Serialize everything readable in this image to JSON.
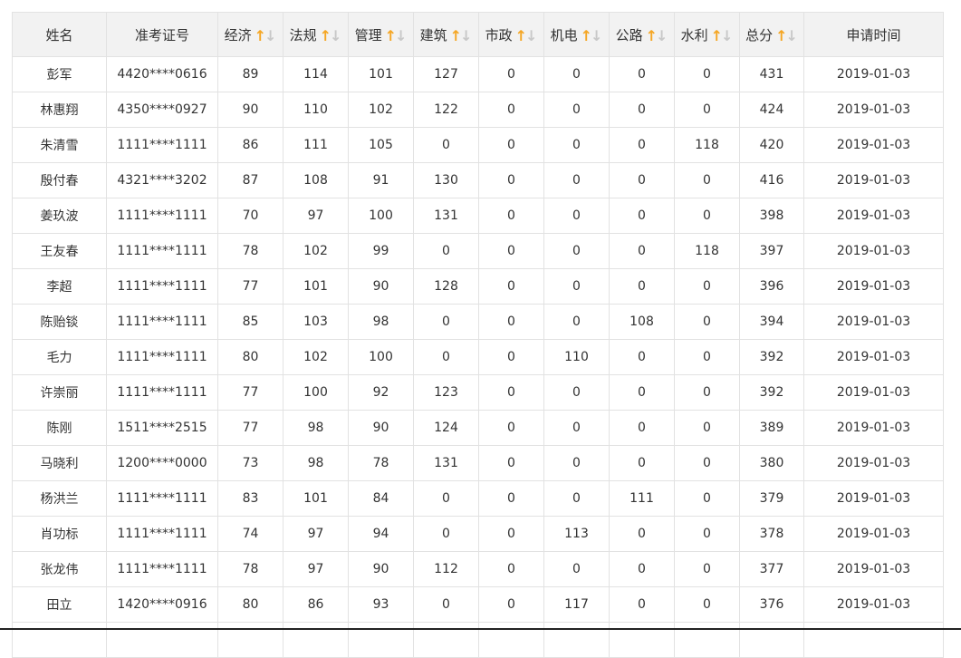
{
  "columns": [
    {
      "label": "姓名",
      "sortable": false
    },
    {
      "label": "准考证号",
      "sortable": false
    },
    {
      "label": "经济",
      "sortable": true
    },
    {
      "label": "法规",
      "sortable": true
    },
    {
      "label": "管理",
      "sortable": true
    },
    {
      "label": "建筑",
      "sortable": true
    },
    {
      "label": "市政",
      "sortable": true
    },
    {
      "label": "机电",
      "sortable": true
    },
    {
      "label": "公路",
      "sortable": true
    },
    {
      "label": "水利",
      "sortable": true
    },
    {
      "label": "总分",
      "sortable": true
    },
    {
      "label": "申请时间",
      "sortable": false
    }
  ],
  "sort_icon": {
    "up": "↑",
    "down": "↓",
    "up_color": "#f5a623",
    "down_color": "#c8c8c8"
  },
  "rows": [
    [
      "彭军",
      "4420****0616",
      "89",
      "114",
      "101",
      "127",
      "0",
      "0",
      "0",
      "0",
      "431",
      "2019-01-03"
    ],
    [
      "林惠翔",
      "4350****0927",
      "90",
      "110",
      "102",
      "122",
      "0",
      "0",
      "0",
      "0",
      "424",
      "2019-01-03"
    ],
    [
      "朱清雪",
      "1111****1111",
      "86",
      "111",
      "105",
      "0",
      "0",
      "0",
      "0",
      "118",
      "420",
      "2019-01-03"
    ],
    [
      "殷付春",
      "4321****3202",
      "87",
      "108",
      "91",
      "130",
      "0",
      "0",
      "0",
      "0",
      "416",
      "2019-01-03"
    ],
    [
      "姜玖波",
      "1111****1111",
      "70",
      "97",
      "100",
      "131",
      "0",
      "0",
      "0",
      "0",
      "398",
      "2019-01-03"
    ],
    [
      "王友春",
      "1111****1111",
      "78",
      "102",
      "99",
      "0",
      "0",
      "0",
      "0",
      "118",
      "397",
      "2019-01-03"
    ],
    [
      "李超",
      "1111****1111",
      "77",
      "101",
      "90",
      "128",
      "0",
      "0",
      "0",
      "0",
      "396",
      "2019-01-03"
    ],
    [
      "陈贻锬",
      "1111****1111",
      "85",
      "103",
      "98",
      "0",
      "0",
      "0",
      "108",
      "0",
      "394",
      "2019-01-03"
    ],
    [
      "毛力",
      "1111****1111",
      "80",
      "102",
      "100",
      "0",
      "0",
      "110",
      "0",
      "0",
      "392",
      "2019-01-03"
    ],
    [
      "许崇丽",
      "1111****1111",
      "77",
      "100",
      "92",
      "123",
      "0",
      "0",
      "0",
      "0",
      "392",
      "2019-01-03"
    ],
    [
      "陈刚",
      "1511****2515",
      "77",
      "98",
      "90",
      "124",
      "0",
      "0",
      "0",
      "0",
      "389",
      "2019-01-03"
    ],
    [
      "马晓利",
      "1200****0000",
      "73",
      "98",
      "78",
      "131",
      "0",
      "0",
      "0",
      "0",
      "380",
      "2019-01-03"
    ],
    [
      "杨洪兰",
      "1111****1111",
      "83",
      "101",
      "84",
      "0",
      "0",
      "0",
      "111",
      "0",
      "379",
      "2019-01-03"
    ],
    [
      "肖功标",
      "1111****1111",
      "74",
      "97",
      "94",
      "0",
      "0",
      "113",
      "0",
      "0",
      "378",
      "2019-01-03"
    ],
    [
      "张龙伟",
      "1111****1111",
      "78",
      "97",
      "90",
      "112",
      "0",
      "0",
      "0",
      "0",
      "377",
      "2019-01-03"
    ],
    [
      "田立",
      "1420****0916",
      "80",
      "86",
      "93",
      "0",
      "0",
      "117",
      "0",
      "0",
      "376",
      "2019-01-03"
    ]
  ]
}
